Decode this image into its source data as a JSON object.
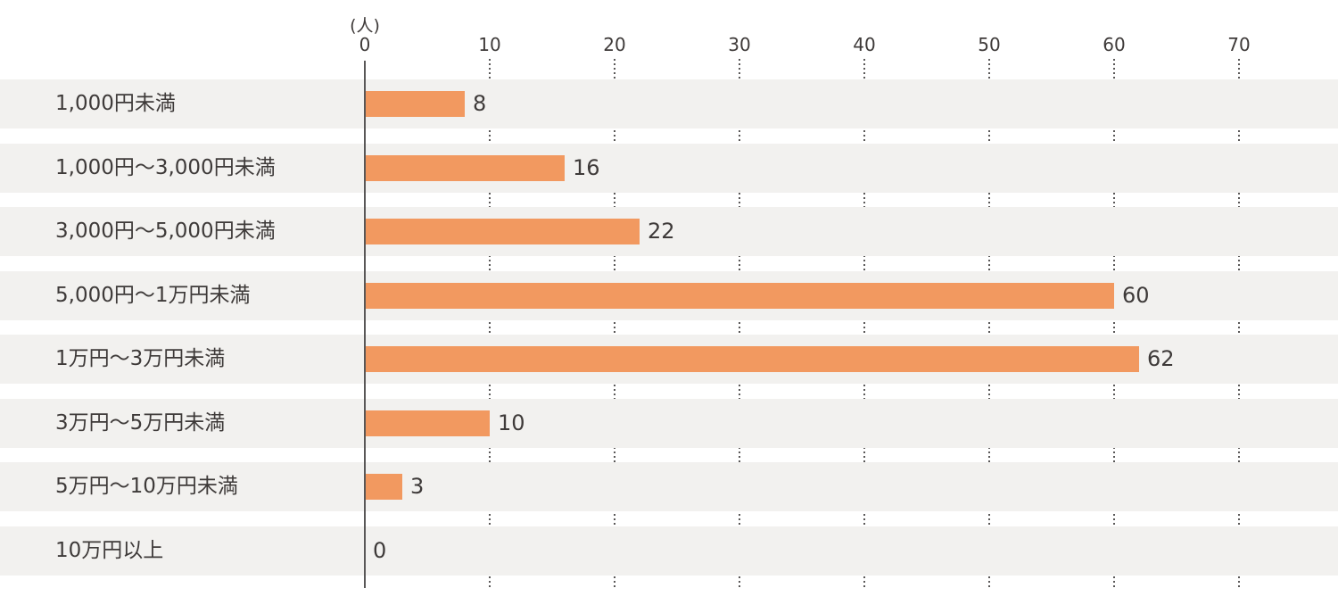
{
  "chart_data": {
    "type": "bar",
    "orientation": "horizontal",
    "title": "",
    "unit_label": "(人)",
    "categories": [
      "1,000円未満",
      "1,000円〜3,000円未満",
      "3,000円〜5,000円未満",
      "5,000円〜1万円未満",
      "1万円〜3万円未満",
      "3万円〜5万円未満",
      "5万円〜10万円未満",
      "10万円以上"
    ],
    "values": [
      8,
      16,
      22,
      60,
      62,
      10,
      3,
      0
    ],
    "x_ticks": [
      0,
      10,
      20,
      30,
      40,
      50,
      60,
      70
    ],
    "xlim": [
      0,
      78
    ],
    "xlabel": "",
    "ylabel": "",
    "legend": "none",
    "grid": "dotted-vertical-in-row-gaps",
    "colors": {
      "bar": "#F29960",
      "row_band": "#F2F1EF",
      "text": "#3E3A39",
      "axis": "#595757",
      "grid": "#595757",
      "background": "#FFFFFF"
    }
  }
}
